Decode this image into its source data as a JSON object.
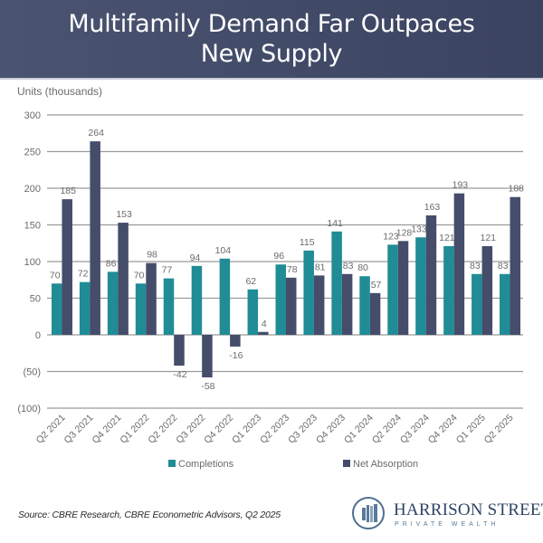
{
  "header": {
    "title_line1": "Multifamily Demand Far Outpaces",
    "title_line2": "New Supply"
  },
  "footer": {
    "source": "Source: CBRE Research, CBRE Econometric Advisors, Q2 2025"
  },
  "logo": {
    "name": "HARRISON STREET",
    "tagline": "PRIVATE WEALTH"
  },
  "colors": {
    "completions": "#208c96",
    "net_absorption": "#454d6b",
    "grid": "#9a9a9a",
    "label": "#6b6b6b"
  },
  "chart_data": {
    "type": "bar",
    "title": "Multifamily Demand Far Outpaces New Supply",
    "xlabel": "",
    "ylabel": "Units (thousands)",
    "ylim": [
      -100,
      300
    ],
    "yticks": [
      300,
      250,
      200,
      150,
      100,
      50,
      0,
      -50,
      -100
    ],
    "ytick_labels": [
      "300",
      "250",
      "200",
      "150",
      "100",
      "50",
      "0",
      "(50)",
      "(100)"
    ],
    "grid": true,
    "legend_position": "bottom",
    "categories": [
      "Q2 2021",
      "Q3 2021",
      "Q4 2021",
      "Q1 2022",
      "Q2 2022",
      "Q3 2022",
      "Q4 2022",
      "Q1 2023",
      "Q2 2023",
      "Q3 2023",
      "Q4 2023",
      "Q1 2024",
      "Q2 2024",
      "Q3 2024",
      "Q4 2024",
      "Q1 2025",
      "Q2 2025"
    ],
    "series": [
      {
        "name": "Completions",
        "values": [
          70,
          72,
          86,
          70,
          77,
          94,
          104,
          62,
          96,
          115,
          141,
          80,
          123,
          133,
          121,
          83,
          83
        ]
      },
      {
        "name": "Net Absorption",
        "values": [
          185,
          264,
          153,
          98,
          -42,
          -58,
          -16,
          4,
          78,
          81,
          83,
          57,
          128,
          163,
          193,
          121,
          188
        ]
      }
    ]
  }
}
